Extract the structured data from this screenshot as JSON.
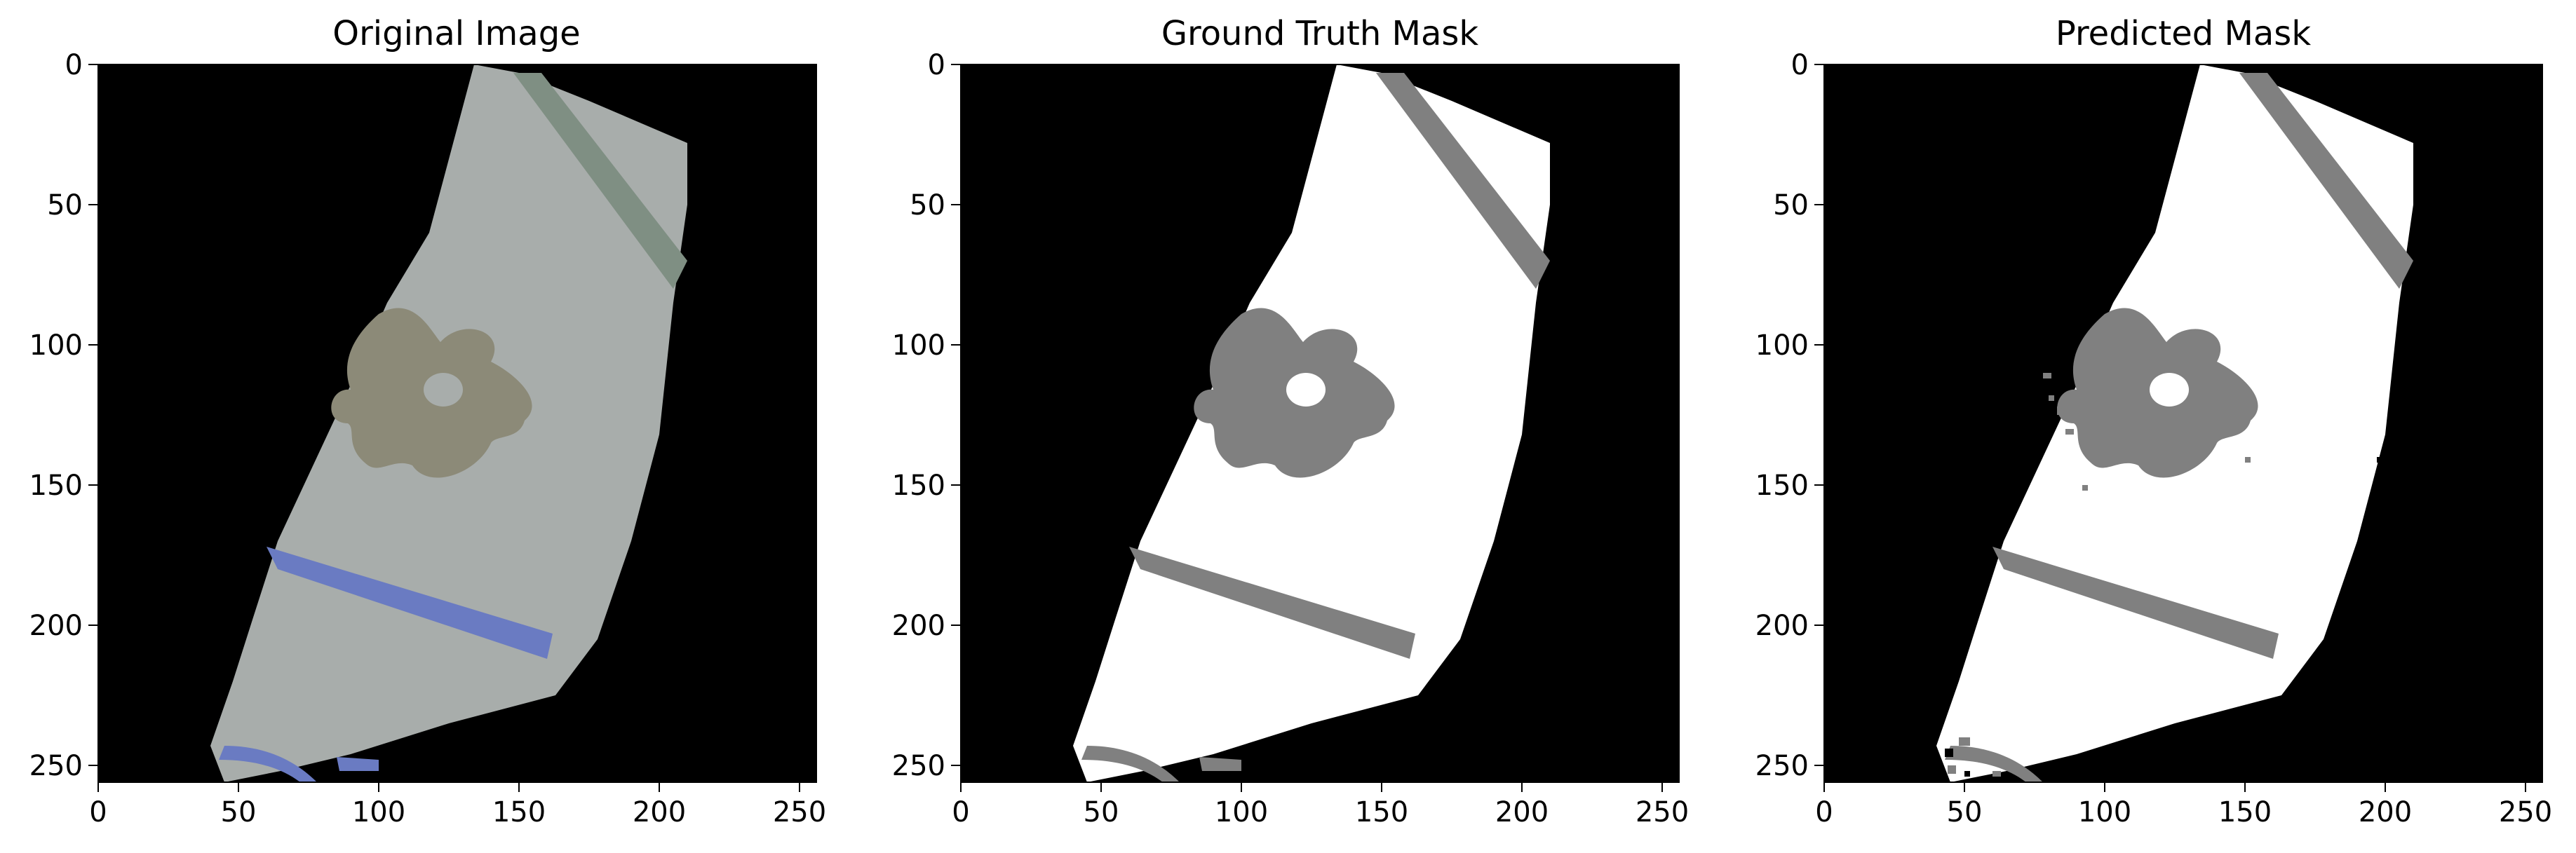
{
  "panels": [
    {
      "id": "original",
      "title": "Original Image"
    },
    {
      "id": "ground-truth",
      "title": "Ground Truth Mask"
    },
    {
      "id": "predicted",
      "title": "Predicted Mask"
    }
  ],
  "axes": {
    "xticks": [
      "0",
      "50",
      "100",
      "150",
      "200",
      "250"
    ],
    "yticks": [
      "0",
      "50",
      "100",
      "150",
      "200",
      "250"
    ],
    "tick_values": [
      0,
      50,
      100,
      150,
      200,
      250
    ],
    "range": [
      0,
      256
    ]
  },
  "colors": {
    "background": "#000000",
    "fragment_original": "#a8adab",
    "mask_fragment": "#ffffff",
    "mask_pattern": "#808080",
    "green_band": "#7f8f83",
    "blue_band": "#6a7bc2",
    "flower": "#8c8a78"
  }
}
